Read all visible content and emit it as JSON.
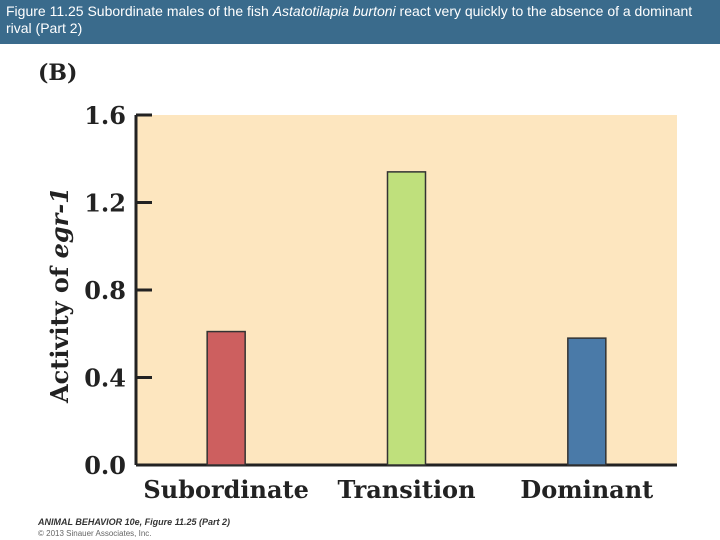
{
  "caption": {
    "prefix": "Figure 11.25  Subordinate males of the fish ",
    "species": "Astatotilapia burtoni",
    "suffix": " react very quickly to the absence of a dominant rival (Part 2)"
  },
  "panel_label": "(B)",
  "chart_data": {
    "type": "bar",
    "categories": [
      "Subordinate",
      "Transition",
      "Dominant"
    ],
    "values": [
      0.61,
      1.34,
      0.58
    ],
    "colors": [
      "#cd5f5f",
      "#bfe07c",
      "#4a7aa8"
    ],
    "ylabel_prefix": "Activity of ",
    "ylabel_italic": "egr-1",
    "ylim": [
      0.0,
      1.6
    ],
    "yticks": [
      "0.0",
      "0.4",
      "0.8",
      "1.2",
      "1.6"
    ],
    "ytick_values": [
      0.0,
      0.4,
      0.8,
      1.2,
      1.6
    ],
    "plot_background": "#fde6bf",
    "grid": false
  },
  "credit": {
    "line1": "ANIMAL BEHAVIOR 10e, Figure 11.25 (Part 2)",
    "line2": "© 2013 Sinauer Associates, Inc."
  }
}
